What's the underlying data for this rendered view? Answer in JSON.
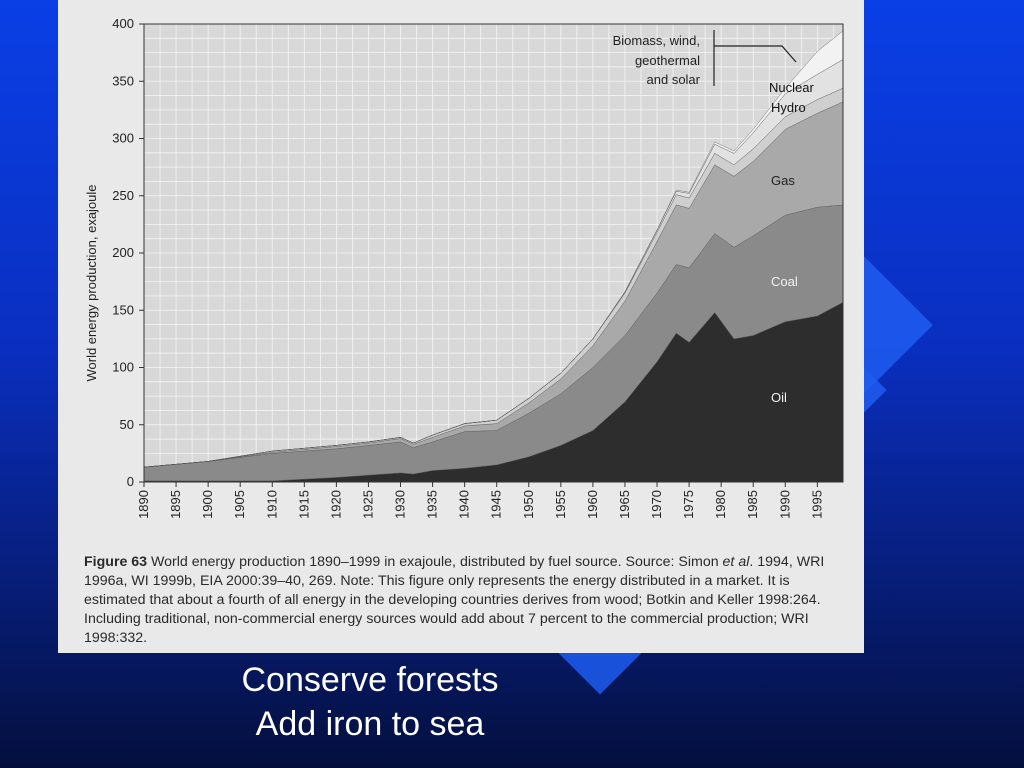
{
  "slide": {
    "lines": [
      "Conserve forests",
      "Add iron to sea"
    ]
  },
  "caption": {
    "figure_label": "Figure 63",
    "text_part1": " World energy production 1890–1999 in exajoule, distributed by fuel source. Source: Simon ",
    "italic": "et al",
    "text_part2": ". 1994, WRI 1996a, WI 1999b, EIA 2000:39–40, 269. Note: This figure only represents the energy distributed in a market. It is estimated that about a fourth of all energy in the developing countries derives from wood; Botkin and Keller 1998:264. Including traditional, non-commercial energy sources would add about 7 percent to the commercial production; WRI 1998:332."
  },
  "colors": {
    "background_top": "#0a3fe6",
    "background_bottom": "#040f3d",
    "panel": "#e9e9e9",
    "oil": "#2d2d2d",
    "coal": "#8a8a8a",
    "gas": "#a9a9a9",
    "hydro": "#cfcfcf",
    "nuclear": "#e2e2e2",
    "biomass": "#f2f2f2"
  },
  "chart_data": {
    "type": "area",
    "stacked": true,
    "title": "",
    "xlabel": "",
    "ylabel": "World energy production, exajoule",
    "xlim": [
      1890,
      1999
    ],
    "ylim": [
      0,
      400
    ],
    "grid": true,
    "x_ticks": [
      1890,
      1895,
      1900,
      1905,
      1910,
      1915,
      1920,
      1925,
      1930,
      1935,
      1940,
      1945,
      1950,
      1955,
      1960,
      1965,
      1970,
      1975,
      1980,
      1985,
      1990,
      1995
    ],
    "y_ticks": [
      0,
      50,
      100,
      150,
      200,
      250,
      300,
      350,
      400
    ],
    "x": [
      1890,
      1900,
      1910,
      1920,
      1925,
      1930,
      1932,
      1935,
      1940,
      1945,
      1950,
      1955,
      1960,
      1965,
      1970,
      1973,
      1975,
      1979,
      1982,
      1985,
      1990,
      1995,
      1999
    ],
    "series": [
      {
        "name": "Oil",
        "values": [
          1,
          1,
          1,
          4,
          6,
          8,
          7,
          10,
          12,
          15,
          22,
          32,
          45,
          70,
          105,
          130,
          122,
          148,
          125,
          128,
          140,
          145,
          157
        ]
      },
      {
        "name": "Coal",
        "values": [
          12,
          17,
          24,
          25,
          26,
          27,
          23,
          25,
          32,
          30,
          38,
          45,
          55,
          58,
          60,
          60,
          65,
          69,
          80,
          87,
          93,
          95,
          85
        ]
      },
      {
        "name": "Gas",
        "values": [
          0,
          0,
          1,
          2,
          2,
          3,
          3,
          4,
          5,
          6,
          9,
          13,
          19,
          30,
          45,
          52,
          52,
          60,
          62,
          65,
          75,
          82,
          90
        ]
      },
      {
        "name": "Hydro",
        "values": [
          0,
          0,
          1,
          1,
          1,
          1,
          1,
          2,
          2,
          3,
          4,
          5,
          6,
          7,
          8,
          9,
          9,
          10,
          10,
          11,
          11,
          12,
          12
        ]
      },
      {
        "name": "Nuclear",
        "values": [
          0,
          0,
          0,
          0,
          0,
          0,
          0,
          0,
          0,
          0,
          0,
          0,
          0,
          1,
          2,
          3,
          4,
          8,
          10,
          14,
          20,
          22,
          25
        ]
      },
      {
        "name": "Biomass, wind, geothermal and solar",
        "values": [
          0,
          0,
          0,
          0,
          0,
          0,
          0,
          0,
          0,
          0,
          0,
          0,
          0,
          0,
          0,
          1,
          1,
          2,
          2,
          3,
          5,
          20,
          25
        ]
      }
    ],
    "labels": {
      "biomass": [
        "Biomass, wind,",
        "geothermal",
        "and solar"
      ],
      "nuclear": "Nuclear",
      "hydro": "Hydro",
      "gas": "Gas",
      "coal": "Coal",
      "oil": "Oil"
    }
  }
}
